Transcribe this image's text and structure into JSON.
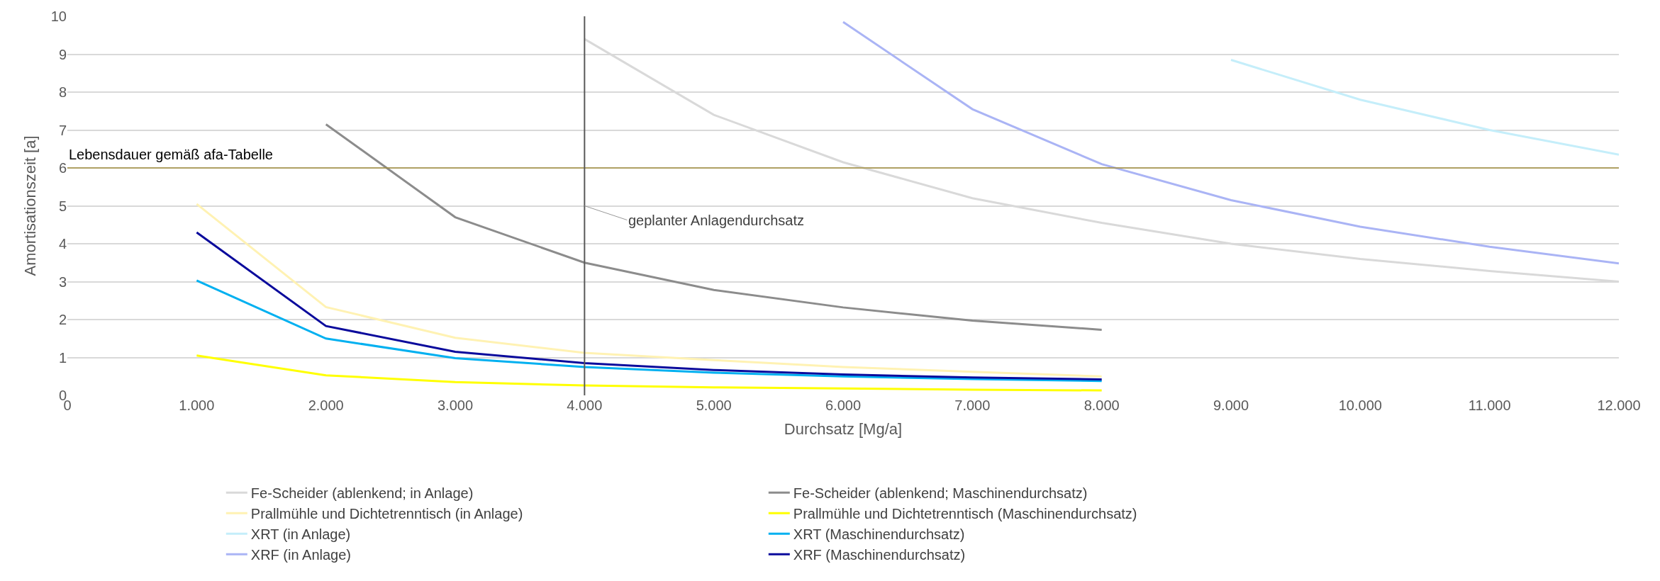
{
  "chart_data": {
    "type": "line",
    "xlabel": "Durchsatz [Mg/a]",
    "ylabel": "Amortisationszeit [a]",
    "xlim": [
      0,
      12000
    ],
    "xticks": [
      0,
      {
        "value": 1000,
        "label": "1.000"
      },
      {
        "value": 2000,
        "label": "2.000"
      },
      {
        "value": 3000,
        "label": "3.000"
      },
      {
        "value": 4000,
        "label": "4.000"
      },
      {
        "value": 5000,
        "label": "5.000"
      },
      {
        "value": 6000,
        "label": "6.000"
      },
      {
        "value": 7000,
        "label": "7.000"
      },
      {
        "value": 8000,
        "label": "8.000"
      },
      {
        "value": 9000,
        "label": "9.000"
      },
      {
        "value": 10000,
        "label": "10.000"
      },
      {
        "value": 11000,
        "label": "11.000"
      },
      {
        "value": 12000,
        "label": "12.000"
      }
    ],
    "ylim": [
      0,
      10
    ],
    "yticks": [
      0,
      1,
      2,
      3,
      4,
      5,
      6,
      7,
      8,
      9,
      10
    ],
    "grid": "y",
    "legend": "bottom",
    "marker": "none",
    "line_style": "solid",
    "series": [
      {
        "name": "Fe-Scheider (ablenkend; in Anlage)",
        "color": "#d9d9d9",
        "x": [
          4000,
          5000,
          6000,
          7000,
          8000,
          9000,
          10000,
          11000,
          12000
        ],
        "values": [
          9.4,
          7.4,
          6.15,
          5.2,
          4.55,
          4.0,
          3.6,
          3.28,
          3.0
        ]
      },
      {
        "name": "Fe-Scheider (ablenkend; Maschinendurchsatz)",
        "color": "#8c8c8c",
        "x": [
          2000,
          3000,
          4000,
          5000,
          6000,
          7000,
          8000
        ],
        "values": [
          7.15,
          4.7,
          3.5,
          2.78,
          2.32,
          1.97,
          1.73
        ]
      },
      {
        "name": "Prallmühle und Dichtetrenntisch (in Anlage)",
        "color": "#fff2b3",
        "x": [
          1000,
          2000,
          3000,
          4000,
          5000,
          6000,
          7000,
          8000
        ],
        "values": [
          5.05,
          2.33,
          1.52,
          1.12,
          0.93,
          0.75,
          0.62,
          0.5
        ]
      },
      {
        "name": "Prallmühle und Dichtetrenntisch (Maschinendurchsatz)",
        "color": "#ffff00",
        "x": [
          1000,
          2000,
          3000,
          4000,
          5000,
          6000,
          7000,
          8000
        ],
        "values": [
          1.05,
          0.53,
          0.35,
          0.26,
          0.21,
          0.18,
          0.15,
          0.13
        ]
      },
      {
        "name": "XRT (in Anlage)",
        "color": "#c5eefa",
        "x": [
          9000,
          10000,
          11000,
          12000
        ],
        "values": [
          8.85,
          7.8,
          7.0,
          6.35
        ]
      },
      {
        "name": "XRT (Maschinendurchsatz)",
        "color": "#00b0f0",
        "x": [
          1000,
          2000,
          3000,
          4000,
          5000,
          6000,
          7000,
          8000
        ],
        "values": [
          3.03,
          1.5,
          0.98,
          0.75,
          0.6,
          0.5,
          0.43,
          0.38
        ]
      },
      {
        "name": "XRF (in Anlage)",
        "color": "#aab4f5",
        "x": [
          6000,
          7000,
          8000,
          9000,
          10000,
          11000,
          12000
        ],
        "values": [
          9.85,
          7.55,
          6.1,
          5.15,
          4.45,
          3.92,
          3.48
        ]
      },
      {
        "name": "XRF (Maschinendurchsatz)",
        "color": "#0a0a9c",
        "x": [
          1000,
          2000,
          3000,
          4000,
          5000,
          6000,
          7000,
          8000
        ],
        "values": [
          4.3,
          1.83,
          1.15,
          0.85,
          0.67,
          0.55,
          0.47,
          0.42
        ]
      }
    ],
    "ref_lines": [
      {
        "axis": "y",
        "value": 6,
        "label": "Lebensdauer gemäß afa-Tabelle",
        "color": "#a08c3c"
      },
      {
        "axis": "x",
        "value": 4000,
        "label": "geplanter Anlagendurchsatz",
        "color": "#595959"
      }
    ]
  }
}
